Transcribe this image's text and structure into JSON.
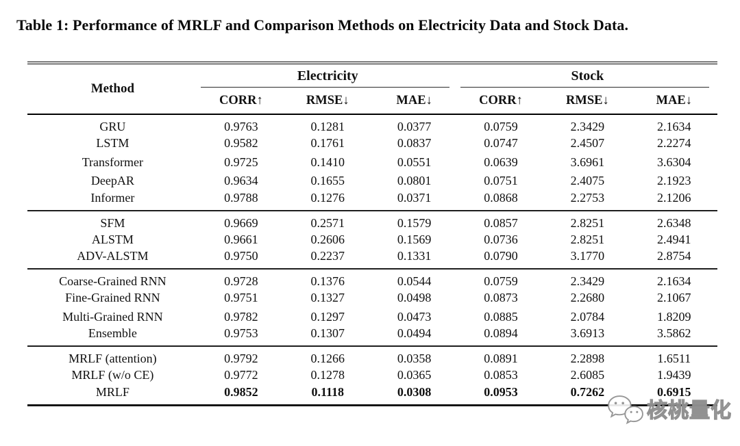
{
  "title": "Table 1: Performance of MRLF and Comparison Methods on Electricity Data and Stock Data.",
  "table": {
    "method_header": "Method",
    "group_headers": [
      "Electricity",
      "Stock"
    ],
    "sub_headers": [
      "CORR↑",
      "RMSE↓",
      "MAE↓",
      "CORR↑",
      "RMSE↓",
      "MAE↓"
    ],
    "groups": [
      {
        "rows": [
          {
            "method": "GRU",
            "values": [
              "0.9763",
              "0.1281",
              "0.0377",
              "0.0759",
              "2.3429",
              "2.1634"
            ],
            "bold": false
          },
          {
            "method": "LSTM",
            "values": [
              "0.9582",
              "0.1761",
              "0.0837",
              "0.0747",
              "2.4507",
              "2.2274"
            ],
            "bold": false
          },
          {
            "method": "Transformer",
            "values": [
              "0.9725",
              "0.1410",
              "0.0551",
              "0.0639",
              "3.6961",
              "3.6304"
            ],
            "bold": false
          },
          {
            "method": "DeepAR",
            "values": [
              "0.9634",
              "0.1655",
              "0.0801",
              "0.0751",
              "2.4075",
              "2.1923"
            ],
            "bold": false
          },
          {
            "method": "Informer",
            "values": [
              "0.9788",
              "0.1276",
              "0.0371",
              "0.0868",
              "2.2753",
              "2.1206"
            ],
            "bold": false
          }
        ]
      },
      {
        "rows": [
          {
            "method": "SFM",
            "values": [
              "0.9669",
              "0.2571",
              "0.1579",
              "0.0857",
              "2.8251",
              "2.6348"
            ],
            "bold": false
          },
          {
            "method": "ALSTM",
            "values": [
              "0.9661",
              "0.2606",
              "0.1569",
              "0.0736",
              "2.8251",
              "2.4941"
            ],
            "bold": false
          },
          {
            "method": "ADV-ALSTM",
            "values": [
              "0.9750",
              "0.2237",
              "0.1331",
              "0.0790",
              "3.1770",
              "2.8754"
            ],
            "bold": false
          }
        ]
      },
      {
        "rows": [
          {
            "method": "Coarse-Grained RNN",
            "values": [
              "0.9728",
              "0.1376",
              "0.0544",
              "0.0759",
              "2.3429",
              "2.1634"
            ],
            "bold": false
          },
          {
            "method": "Fine-Grained RNN",
            "values": [
              "0.9751",
              "0.1327",
              "0.0498",
              "0.0873",
              "2.2680",
              "2.1067"
            ],
            "bold": false
          },
          {
            "method": "Multi-Grained RNN",
            "values": [
              "0.9782",
              "0.1297",
              "0.0473",
              "0.0885",
              "2.0784",
              "1.8209"
            ],
            "bold": false
          },
          {
            "method": "Ensemble",
            "values": [
              "0.9753",
              "0.1307",
              "0.0494",
              "0.0894",
              "3.6913",
              "3.5862"
            ],
            "bold": false
          }
        ]
      },
      {
        "rows": [
          {
            "method": "MRLF (attention)",
            "values": [
              "0.9792",
              "0.1266",
              "0.0358",
              "0.0891",
              "2.2898",
              "1.6511"
            ],
            "bold": false
          },
          {
            "method": "MRLF (w/o CE)",
            "values": [
              "0.9772",
              "0.1278",
              "0.0365",
              "0.0853",
              "2.6085",
              "1.9439"
            ],
            "bold": false
          },
          {
            "method": "MRLF",
            "values": [
              "0.9852",
              "0.1118",
              "0.0308",
              "0.0953",
              "0.7262",
              "0.6915"
            ],
            "bold": true
          }
        ]
      }
    ]
  },
  "watermark": {
    "icon": "wechat-icon",
    "text": "核桃量化"
  }
}
